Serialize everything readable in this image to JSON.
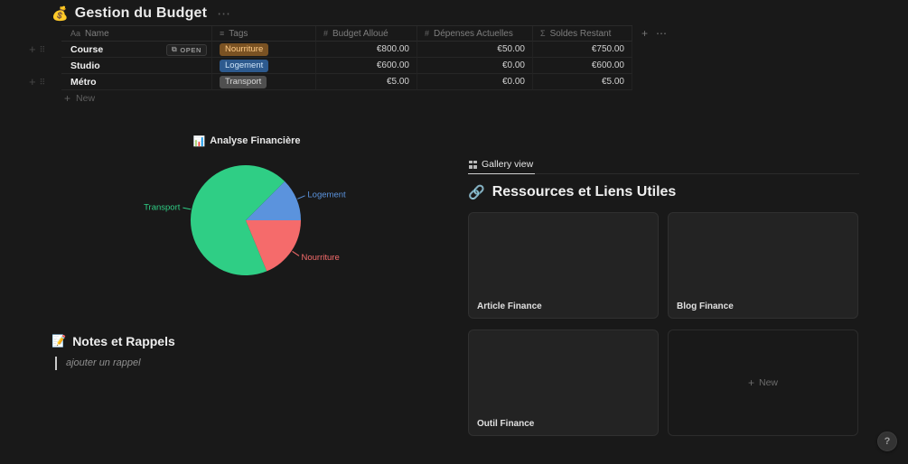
{
  "page": {
    "title_emoji": "💰",
    "title": "Gestion du Budget",
    "more_label": "⋯"
  },
  "table": {
    "columns": [
      {
        "icon": "Aa",
        "label": "Name"
      },
      {
        "icon": "≡",
        "label": "Tags"
      },
      {
        "icon": "#",
        "label": "Budget Alloué"
      },
      {
        "icon": "#",
        "label": "Dépenses Actuelles"
      },
      {
        "icon": "Σ",
        "label": "Soldes Restant"
      }
    ],
    "add_column_label": "+",
    "header_more_label": "⋯",
    "open_button": {
      "icon": "⧉",
      "label": "OPEN"
    },
    "row_controls": {
      "add": "+",
      "drag": "⠿"
    },
    "rows": [
      {
        "name": "Course",
        "tag": "Nourriture",
        "tag_bg": "#7a5223",
        "tag_text": "#ffcb86",
        "budget": "€800.00",
        "expenses": "€50.00",
        "remaining": "€750.00"
      },
      {
        "name": "Studio",
        "tag": "Logement",
        "tag_bg": "#2d5a8e",
        "tag_text": "#cde3f7",
        "budget": "€600.00",
        "expenses": "€0.00",
        "remaining": "€600.00"
      },
      {
        "name": "Métro",
        "tag": "Transport",
        "tag_bg": "#4f4f4f",
        "tag_text": "#d9d9d9",
        "budget": "€5.00",
        "expenses": "€0.00",
        "remaining": "€5.00"
      }
    ],
    "new_row": {
      "plus": "+",
      "label": "New"
    }
  },
  "chart_data": {
    "type": "pie",
    "title_emoji": "📊",
    "title": "Analyse Financière",
    "start_angle_deg": 0,
    "direction": "counterclockwise",
    "values_are": "percent",
    "legend": "labels-with-leader-lines",
    "slices": [
      {
        "label": "Logement",
        "value": 12.5,
        "color": "#5b93dd"
      },
      {
        "label": "Transport",
        "value": 68.75,
        "color": "#2fce85"
      },
      {
        "label": "Nourriture",
        "value": 18.75,
        "color": "#f56b6b"
      }
    ]
  },
  "gallery": {
    "view_tab": "Gallery view",
    "heading_emoji": "🔗",
    "heading": "Ressources et Liens Utiles",
    "cards": [
      {
        "title": "Article Finance"
      },
      {
        "title": "Blog Finance"
      },
      {
        "title": "Outil Finance"
      }
    ],
    "new_card": {
      "plus": "+",
      "label": "New"
    }
  },
  "notes": {
    "heading_emoji": "📝",
    "heading": "Notes et Rappels",
    "placeholder": "ajouter un rappel"
  },
  "help_label": "?"
}
